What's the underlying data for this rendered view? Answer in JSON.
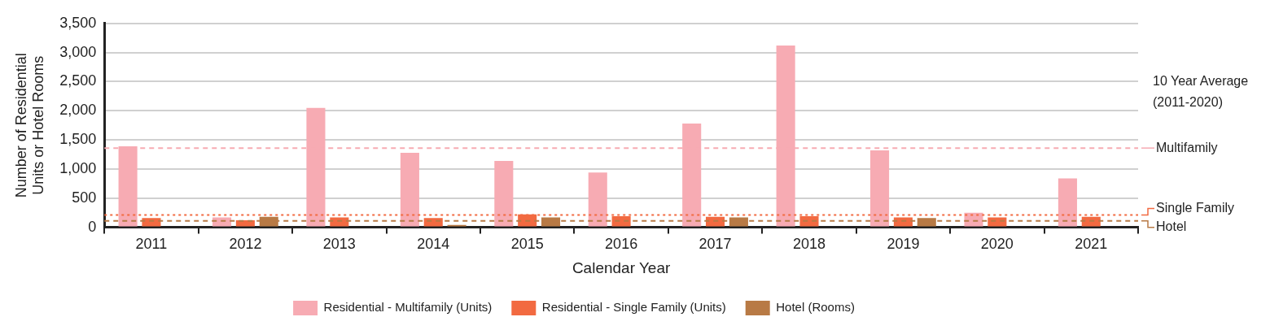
{
  "chart_data": {
    "type": "bar",
    "xlabel": "Calendar Year",
    "ylabel": "Number of Residential Units or Hotel Rooms",
    "categories": [
      "2011",
      "2012",
      "2013",
      "2014",
      "2015",
      "2016",
      "2017",
      "2018",
      "2019",
      "2020",
      "2021"
    ],
    "series": [
      {
        "name": "Residential - Multifamily (Units)",
        "color": "#f7abb3",
        "values": [
          1390,
          170,
          2050,
          1280,
          1140,
          940,
          1780,
          3120,
          1320,
          250,
          840
        ]
      },
      {
        "name": "Residential - Single Family (Units)",
        "color": "#f26a41",
        "values": [
          160,
          120,
          170,
          160,
          220,
          190,
          180,
          190,
          170,
          170,
          180
        ]
      },
      {
        "name": "Hotel (Rooms)",
        "color": "#b87a45",
        "values": [
          null,
          180,
          null,
          40,
          170,
          null,
          170,
          null,
          160,
          null,
          null
        ]
      }
    ],
    "ylim": [
      0,
      3500
    ],
    "yticks": [
      0,
      500,
      {
        "value": 1000,
        "label": "1,000"
      },
      {
        "value": 1500,
        "label": "1,500"
      },
      {
        "value": 2000,
        "label": "2,000"
      },
      {
        "value": 2500,
        "label": "2,500"
      },
      {
        "value": 3000,
        "label": "3,000"
      },
      {
        "value": 3500,
        "label": "3,500"
      }
    ],
    "grid": "y",
    "legend": "bottom",
    "ref_lines": [
      {
        "axis": "y",
        "value": 1360,
        "label": "Multifamily",
        "color": "#f7abb3",
        "line_style": "dashed"
      },
      {
        "axis": "y",
        "value": 210,
        "label": "Single Family",
        "color": "#f26a41",
        "line_style": "dotted"
      },
      {
        "axis": "y",
        "value": 110,
        "label": "Hotel",
        "color": "#b87a45",
        "line_style": "dashed"
      }
    ],
    "annotations": [
      "10 Year Average (2011-2020)"
    ]
  }
}
